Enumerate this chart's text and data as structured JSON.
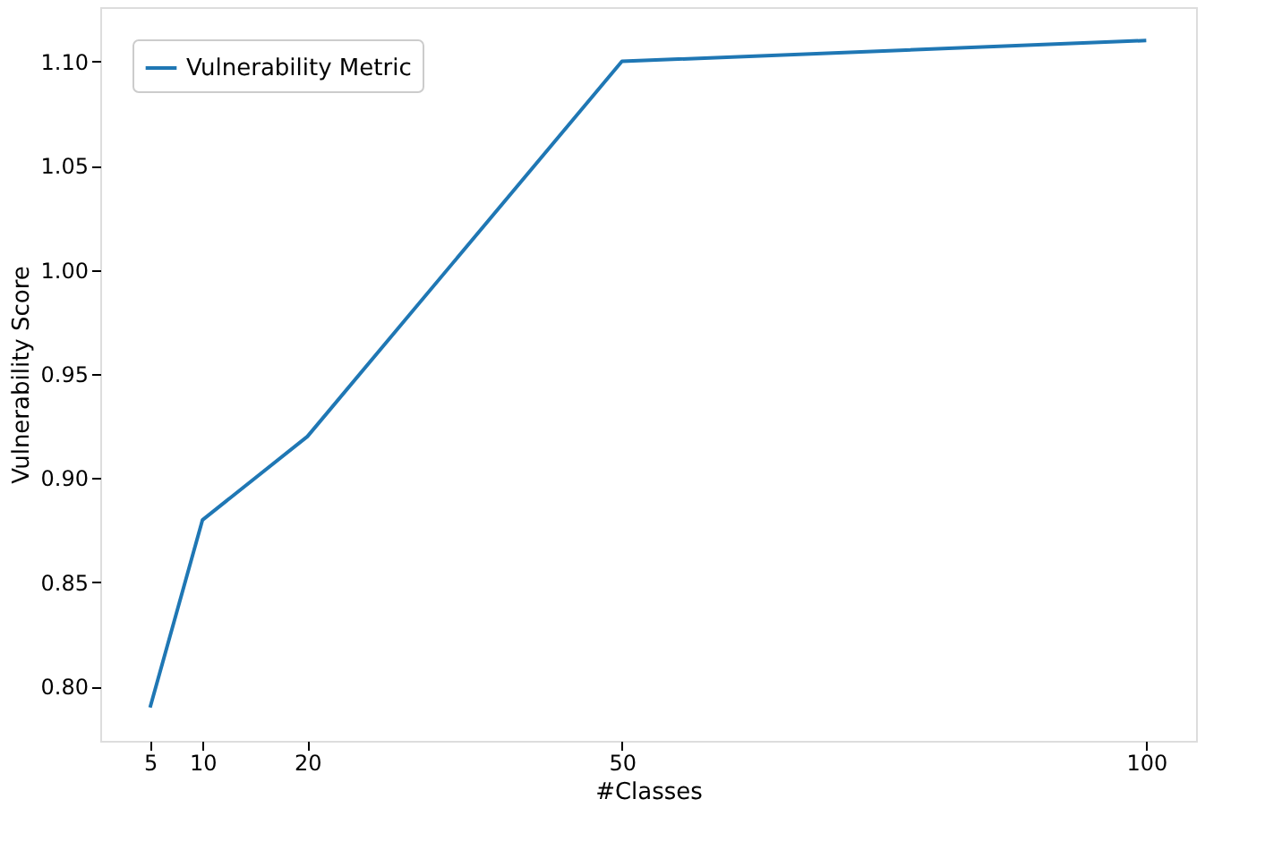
{
  "chart_data": {
    "type": "line",
    "xlabel": "#Classes",
    "ylabel": "Vulnerability Score",
    "x": [
      5,
      10,
      20,
      50,
      100
    ],
    "series": [
      {
        "name": "Vulnerability Metric",
        "color": "#1f77b4",
        "values": [
          0.79,
          0.88,
          0.92,
          1.1,
          1.11
        ]
      }
    ],
    "xlim": [
      0.25,
      104.75
    ],
    "ylim": [
      0.774,
      1.126
    ],
    "xticks": [
      5,
      10,
      20,
      50,
      100
    ],
    "yticks": [
      {
        "value": 0.8,
        "label": "0.80"
      },
      {
        "value": 0.85,
        "label": "0.85"
      },
      {
        "value": 0.9,
        "label": "0.90"
      },
      {
        "value": 0.95,
        "label": "0.95"
      },
      {
        "value": 1.0,
        "label": "1.00"
      },
      {
        "value": 1.05,
        "label": "1.05"
      },
      {
        "value": 1.1,
        "label": "1.10"
      }
    ],
    "grid": false,
    "legend": "top left",
    "marker": "none",
    "line_style": "solid"
  }
}
